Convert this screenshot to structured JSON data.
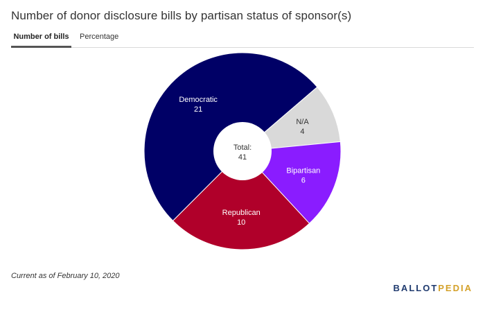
{
  "header": {
    "title": "Number of donor disclosure bills by partisan status of sponsor(s)"
  },
  "tabs": [
    {
      "label": "Number of bills",
      "active": true
    },
    {
      "label": "Percentage",
      "active": false
    }
  ],
  "chart_data": {
    "type": "pie",
    "title": "Number of donor disclosure bills by partisan status of sponsor(s)",
    "donut": true,
    "center_label": "Total:",
    "center_value": "41",
    "slices": [
      {
        "label": "Democratic",
        "value": 21,
        "color": "#000066",
        "text_color": "#ffffff"
      },
      {
        "label": "N/A",
        "value": 4,
        "color": "#d9d9d9",
        "text_color": "#333333"
      },
      {
        "label": "Bipartisan",
        "value": 6,
        "color": "#8a1cff",
        "text_color": "#ffffff"
      },
      {
        "label": "Republican",
        "value": 10,
        "color": "#b0002a",
        "text_color": "#ffffff"
      }
    ]
  },
  "footer": {
    "note": "Current as of February 10, 2020",
    "brand_part1": "BALLOT",
    "brand_part2": "PEDIA",
    "brand_color1": "#1f3a6e",
    "brand_color2": "#d4a12a"
  }
}
